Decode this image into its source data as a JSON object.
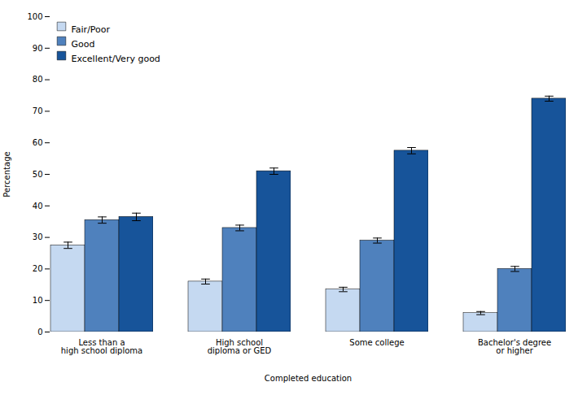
{
  "chart_data": {
    "type": "bar",
    "categories": [
      "Less than a\nhigh school diploma",
      "High school\ndiploma or GED",
      "Some college",
      "Bachelor's degree\nor higher"
    ],
    "series": [
      {
        "name": "Fair/Poor",
        "color": "#c5d9f1",
        "values": [
          27.5,
          16.0,
          13.5,
          6.0
        ],
        "errors": [
          1.0,
          0.8,
          0.7,
          0.5
        ]
      },
      {
        "name": "Good",
        "color": "#4f81bd",
        "values": [
          35.5,
          33.0,
          29.0,
          20.0
        ],
        "errors": [
          1.0,
          0.9,
          0.8,
          0.8
        ]
      },
      {
        "name": "Excellent/Very good",
        "color": "#17549a",
        "values": [
          36.5,
          51.0,
          57.5,
          74.0
        ],
        "errors": [
          1.2,
          1.0,
          1.0,
          0.8
        ]
      }
    ],
    "xlabel": "Completed education",
    "ylabel": "Percentage",
    "ylim": [
      0,
      100
    ],
    "yticks": [
      0,
      10,
      20,
      30,
      40,
      50,
      60,
      70,
      80,
      90,
      100
    ],
    "legend": "upper left",
    "grid": false
  }
}
